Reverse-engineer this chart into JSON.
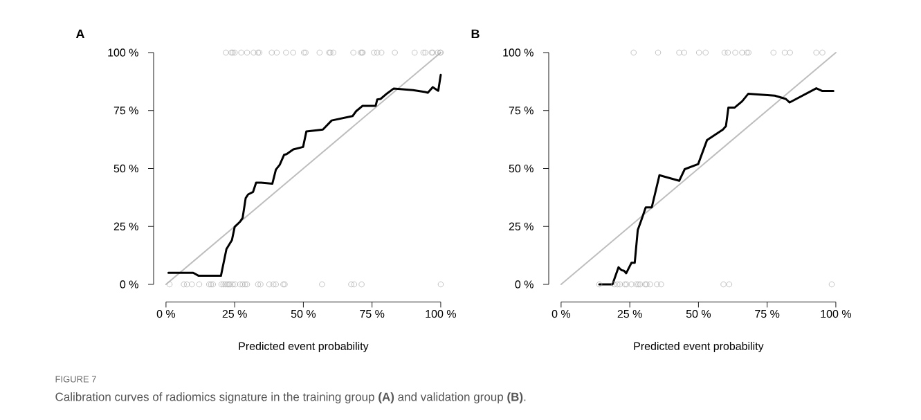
{
  "chart_data": [
    {
      "type": "line",
      "title": "A",
      "xlabel": "Predicted event probability",
      "xlim": [
        0,
        100
      ],
      "ylim": [
        0,
        100
      ],
      "xticks": [
        {
          "value": 0,
          "label": "0 %"
        },
        {
          "value": 25,
          "label": "25 %"
        },
        {
          "value": 50,
          "label": "50 %"
        },
        {
          "value": 75,
          "label": "75 %"
        },
        {
          "value": 100,
          "label": "100 %"
        }
      ],
      "yticks": [
        {
          "value": 0,
          "label": "0 %"
        },
        {
          "value": 25,
          "label": "25 %"
        },
        {
          "value": 50,
          "label": "50 %"
        },
        {
          "value": 75,
          "label": "75 %"
        },
        {
          "value": 100,
          "label": "100 %"
        }
      ],
      "series": [
        {
          "type": "scatter",
          "marker": "circle",
          "color": "#a6a6a6",
          "x": [
            21.8,
            23.8,
            24.3,
            25.0,
            27.4,
            29.5,
            31.9,
            33.5,
            34.0,
            38.5,
            40.3,
            43.7,
            46.3,
            50.2,
            50.8,
            55.9,
            59.4,
            59.8,
            60.9,
            68.2,
            70.9,
            71.3,
            71.6,
            75.7,
            76.9,
            78.4,
            83.3,
            90.5,
            93.7,
            94.4,
            96.7,
            97.1,
            98.9,
            99.8,
            100,
            1.3,
            6.5,
            7.6,
            9.4,
            12.1,
            15.7,
            16.4,
            17.1,
            20.2,
            20.9,
            21.6,
            22.3,
            22.9,
            23.4,
            24.3,
            25.2,
            27.0,
            27.9,
            28.8,
            29.5,
            33.5,
            34.4,
            37.6,
            39.1,
            40.0,
            42.7,
            43.2,
            56.8,
            67.4,
            68.5,
            71.2,
            100
          ],
          "values": [
            100,
            100,
            100,
            100,
            100,
            100,
            100,
            100,
            100,
            100,
            100,
            100,
            100,
            100,
            100,
            100,
            100,
            100,
            100,
            100,
            100,
            100,
            100,
            100,
            100,
            100,
            100,
            100,
            100,
            100,
            100,
            100,
            100,
            100,
            100,
            0,
            0,
            0,
            0,
            0,
            0,
            0,
            0,
            0,
            0,
            0,
            0,
            0,
            0,
            0,
            0,
            0,
            0,
            0,
            0,
            0,
            0,
            0,
            0,
            0,
            0,
            0,
            0,
            0,
            0,
            0,
            0
          ]
        },
        {
          "type": "line",
          "color": "#bebebe",
          "x": [
            0,
            100
          ],
          "values": [
            0,
            100
          ]
        },
        {
          "type": "line",
          "color": "#000000",
          "x": [
            0.9,
            9.9,
            11.9,
            20.0,
            22.0,
            24.0,
            25.0,
            27.0,
            27.9,
            29.0,
            29.9,
            31.7,
            32.8,
            34.6,
            38.7,
            40.0,
            41.4,
            43.0,
            43.9,
            46.3,
            49.9,
            51.1,
            57.1,
            60.3,
            67.9,
            69.2,
            71.5,
            76.3,
            76.9,
            78.1,
            80.5,
            82.9,
            89.9,
            94.4,
            95.3,
            97.1,
            99.1,
            100
          ],
          "values": [
            5.0,
            5.0,
            3.7,
            3.7,
            15.2,
            19.1,
            24.8,
            27.1,
            28.7,
            37.2,
            38.8,
            39.9,
            43.9,
            43.9,
            43.4,
            49.5,
            51.6,
            55.9,
            56.2,
            58.2,
            59.3,
            66.0,
            66.8,
            70.7,
            72.6,
            74.7,
            77.0,
            77.0,
            79.8,
            80.0,
            82.4,
            84.5,
            83.8,
            83.0,
            82.7,
            85.1,
            83.5,
            90.4
          ]
        }
      ],
      "annotations": [
        "FIGURE 7",
        "Calibration curves of radiomics signature in the training group **(A)** and validation group **(B)**."
      ]
    },
    {
      "type": "line",
      "title": "B",
      "xlabel": "Predicted event probability",
      "xlim": [
        0,
        100
      ],
      "ylim": [
        0,
        100
      ],
      "xticks": [
        {
          "value": 0,
          "label": "0 %"
        },
        {
          "value": 25,
          "label": "25 %"
        },
        {
          "value": 50,
          "label": "50 %"
        },
        {
          "value": 75,
          "label": "75 %"
        },
        {
          "value": 100,
          "label": "100 %"
        }
      ],
      "yticks": [
        {
          "value": 0,
          "label": "0 %"
        },
        {
          "value": 25,
          "label": "25 %"
        },
        {
          "value": 50,
          "label": "50 %"
        },
        {
          "value": 75,
          "label": "75 %"
        },
        {
          "value": 100,
          "label": "100 %"
        }
      ],
      "series": [
        {
          "type": "scatter",
          "marker": "circle",
          "color": "#a6a6a6",
          "x": [
            26.4,
            35.3,
            43.0,
            44.8,
            50.2,
            52.6,
            59.5,
            60.7,
            63.4,
            65.9,
            67.6,
            68.2,
            77.3,
            81.4,
            83.3,
            92.9,
            95.1,
            13.9,
            19.3,
            20.5,
            21.4,
            23.2,
            23.8,
            25.6,
            27.4,
            28.1,
            28.8,
            30.6,
            31.1,
            32.4,
            34.9,
            36.4,
            59.1,
            61.2,
            98.5
          ],
          "values": [
            100,
            100,
            100,
            100,
            100,
            100,
            100,
            100,
            100,
            100,
            100,
            100,
            100,
            100,
            100,
            100,
            100,
            0,
            0,
            0,
            0,
            0,
            0,
            0,
            0,
            0,
            0,
            0,
            0,
            0,
            0,
            0,
            0,
            0,
            0
          ]
        },
        {
          "type": "line",
          "color": "#bebebe",
          "x": [
            0,
            100
          ],
          "values": [
            0,
            100
          ]
        },
        {
          "type": "line",
          "color": "#000000",
          "x": [
            13.9,
            18.7,
            20.9,
            22.0,
            22.9,
            23.7,
            25.6,
            26.8,
            27.9,
            29.2,
            30.8,
            33.0,
            35.8,
            43.0,
            45.0,
            49.9,
            53.1,
            58.9,
            60.0,
            60.9,
            63.2,
            65.9,
            68.1,
            77.8,
            81.8,
            83.2,
            92.9,
            95.1,
            99.1
          ],
          "values": [
            0,
            0,
            7.4,
            6.1,
            5.9,
            4.8,
            9.3,
            9.3,
            23.4,
            27.7,
            33.2,
            33.2,
            47.1,
            44.7,
            49.7,
            51.9,
            62.2,
            66.8,
            68.3,
            76.3,
            76.3,
            79.0,
            82.2,
            81.4,
            80.0,
            78.5,
            84.6,
            83.4,
            83.4
          ]
        }
      ]
    }
  ]
}
